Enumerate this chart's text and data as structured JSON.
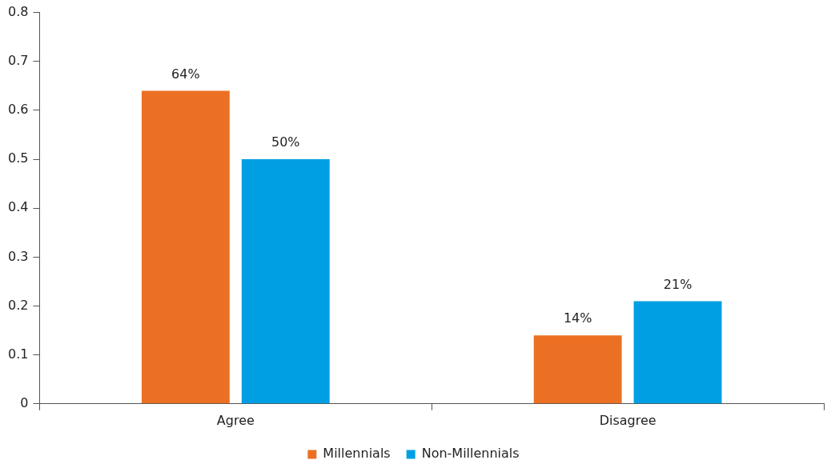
{
  "chart_data": {
    "type": "bar",
    "categories": [
      "Agree",
      "Disagree"
    ],
    "series": [
      {
        "name": "Millennials",
        "color": "#ec7023",
        "values": [
          0.64,
          0.14
        ],
        "value_labels": [
          "64%",
          "14%"
        ]
      },
      {
        "name": "Non-Millennials",
        "color": "#009fe3",
        "values": [
          0.5,
          0.21
        ],
        "value_labels": [
          "50%",
          "21%"
        ]
      }
    ],
    "ylim": [
      0,
      0.8
    ],
    "yticks": [
      0,
      0.1,
      0.2,
      0.3,
      0.4,
      0.5,
      0.6,
      0.7,
      0.8
    ],
    "legend": "bottom"
  }
}
